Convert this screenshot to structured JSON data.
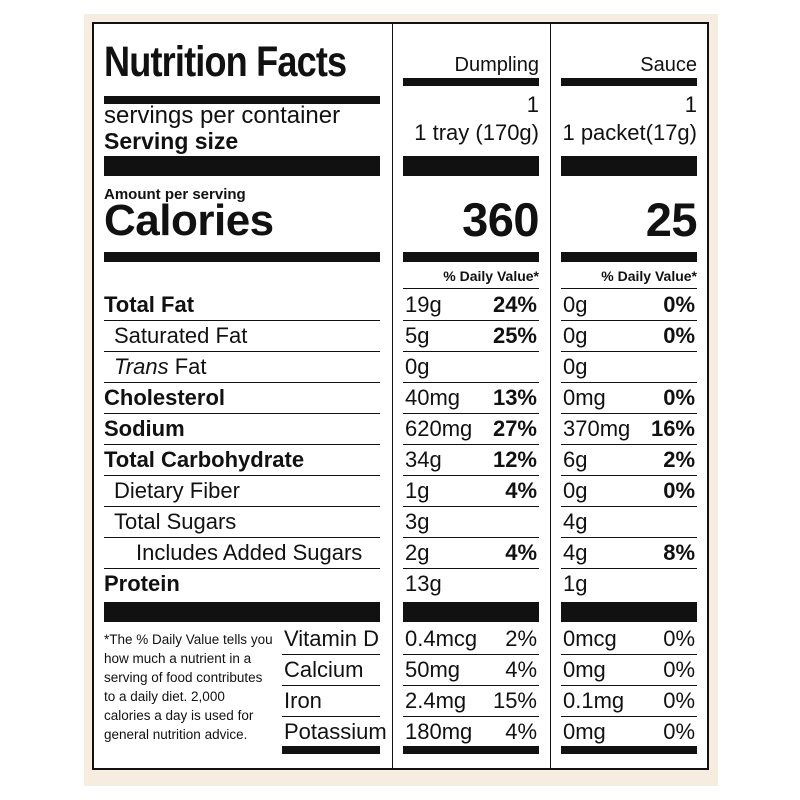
{
  "title": "Nutrition Facts",
  "columns": [
    {
      "name": "Dumpling",
      "servings": "1",
      "serving_size": "1 tray (170g)",
      "calories": "360",
      "nutrients": [
        {
          "amount": "19g",
          "dv": "24%"
        },
        {
          "amount": "5g",
          "dv": "25%"
        },
        {
          "amount": "0g",
          "dv": ""
        },
        {
          "amount": "40mg",
          "dv": "13%"
        },
        {
          "amount": "620mg",
          "dv": "27%"
        },
        {
          "amount": "34g",
          "dv": "12%"
        },
        {
          "amount": "1g",
          "dv": "4%"
        },
        {
          "amount": "3g",
          "dv": ""
        },
        {
          "amount": "2g",
          "dv": "4%"
        },
        {
          "amount": "13g",
          "dv": ""
        }
      ],
      "vitamins": [
        {
          "amount": "0.4mcg",
          "dv": "2%"
        },
        {
          "amount": "50mg",
          "dv": "4%"
        },
        {
          "amount": "2.4mg",
          "dv": "15%"
        },
        {
          "amount": "180mg",
          "dv": "4%"
        }
      ]
    },
    {
      "name": "Sauce",
      "servings": "1",
      "serving_size": "1 packet(17g)",
      "calories": "25",
      "nutrients": [
        {
          "amount": "0g",
          "dv": "0%"
        },
        {
          "amount": "0g",
          "dv": "0%"
        },
        {
          "amount": "0g",
          "dv": ""
        },
        {
          "amount": "0mg",
          "dv": "0%"
        },
        {
          "amount": "370mg",
          "dv": "16%"
        },
        {
          "amount": "6g",
          "dv": "2%"
        },
        {
          "amount": "0g",
          "dv": "0%"
        },
        {
          "amount": "4g",
          "dv": ""
        },
        {
          "amount": "4g",
          "dv": "8%"
        },
        {
          "amount": "1g",
          "dv": ""
        }
      ],
      "vitamins": [
        {
          "amount": "0mcg",
          "dv": "0%"
        },
        {
          "amount": "0mg",
          "dv": "0%"
        },
        {
          "amount": "0.1mg",
          "dv": "0%"
        },
        {
          "amount": "0mg",
          "dv": "0%"
        }
      ]
    }
  ],
  "labels": {
    "servings_per_container": "servings per container",
    "serving_size": "Serving size",
    "amount_per_serving": "Amount per serving",
    "calories": "Calories",
    "daily_value_header": "% Daily Value*",
    "nutrients": [
      "Total Fat",
      "Saturated Fat",
      "Fat",
      "Cholesterol",
      "Sodium",
      "Total Carbohydrate",
      "Dietary Fiber",
      "Total Sugars",
      "Includes Added Sugars",
      "Protein"
    ],
    "trans_prefix": "Trans",
    "vitamins": [
      "Vitamin D",
      "Calcium",
      "Iron",
      "Potassium"
    ],
    "footnote": "*The % Daily Value tells you how much a nutrient in a serving of food contributes to a daily diet. 2,000 calories a day is used for general nutrition advice."
  },
  "colors": {
    "frame": "#f7ece0",
    "ink": "#111111"
  }
}
